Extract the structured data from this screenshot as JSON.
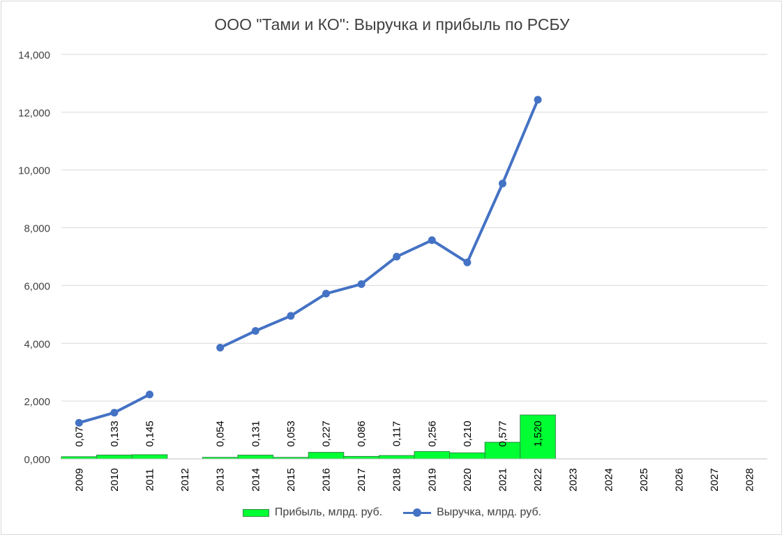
{
  "chart_data": {
    "type": "bar",
    "title": "ООО \"Тами и КО\": Выручка и прибыль по РСБУ",
    "categories": [
      "2009",
      "2010",
      "2011",
      "2012",
      "2013",
      "2014",
      "2015",
      "2016",
      "2017",
      "2018",
      "2019",
      "2020",
      "2021",
      "2022",
      "2023",
      "2024",
      "2025",
      "2026",
      "2027",
      "2028"
    ],
    "y_ticks": [
      "0,000",
      "2,000",
      "4,000",
      "6,000",
      "8,000",
      "10,000",
      "12,000",
      "14,000"
    ],
    "ylim": [
      0,
      14
    ],
    "grid": true,
    "legend_position": "bottom",
    "series": [
      {
        "name": "Прибыль, млрд. руб.",
        "type": "bar",
        "color": "#00ff33",
        "values": [
          0.076,
          0.133,
          0.145,
          null,
          0.054,
          0.131,
          0.053,
          0.227,
          0.086,
          0.117,
          0.256,
          0.21,
          0.577,
          1.52,
          null,
          null,
          null,
          null,
          null,
          null
        ],
        "data_labels": [
          "0,076",
          "0,133",
          "0,145",
          "",
          "0,054",
          "0,131",
          "0,053",
          "0,227",
          "0,086",
          "0,117",
          "0,256",
          "0,210",
          "0,577",
          "1,520",
          "",
          "",
          "",
          "",
          "",
          ""
        ]
      },
      {
        "name": "Выручка, млрд. руб.",
        "type": "line",
        "color": "#4472c4",
        "values": [
          1.25,
          1.6,
          2.23,
          null,
          3.85,
          4.43,
          4.95,
          5.72,
          6.05,
          7.0,
          7.57,
          6.8,
          9.53,
          12.43,
          null,
          null,
          null,
          null,
          null,
          null
        ]
      }
    ]
  }
}
